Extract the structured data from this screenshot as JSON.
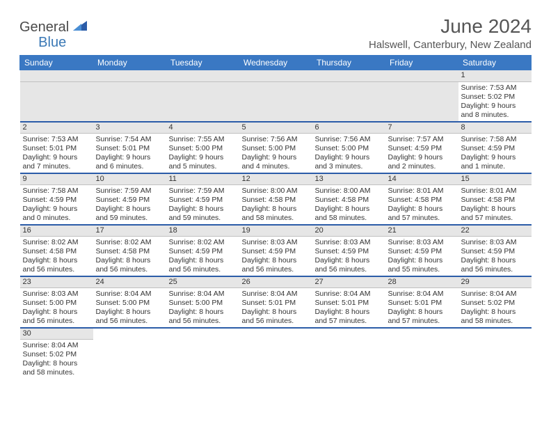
{
  "logo": {
    "part1": "General",
    "part2": "Blue"
  },
  "title": "June 2024",
  "location": "Halswell, Canterbury, New Zealand",
  "colors": {
    "header_bg": "#3a78c3",
    "header_text": "#ffffff",
    "daynum_bg": "#e6e6e6",
    "row_divider": "#2b5ca8",
    "logo_gray": "#4a4a4a",
    "logo_blue": "#3a78b5"
  },
  "weekdays": [
    "Sunday",
    "Monday",
    "Tuesday",
    "Wednesday",
    "Thursday",
    "Friday",
    "Saturday"
  ],
  "weeks": [
    {
      "days": [
        null,
        null,
        null,
        null,
        null,
        null,
        {
          "n": "1",
          "sunrise": "7:53 AM",
          "sunset": "5:02 PM",
          "daylight": "9 hours and 8 minutes."
        }
      ]
    },
    {
      "days": [
        {
          "n": "2",
          "sunrise": "7:53 AM",
          "sunset": "5:01 PM",
          "daylight": "9 hours and 7 minutes."
        },
        {
          "n": "3",
          "sunrise": "7:54 AM",
          "sunset": "5:01 PM",
          "daylight": "9 hours and 6 minutes."
        },
        {
          "n": "4",
          "sunrise": "7:55 AM",
          "sunset": "5:00 PM",
          "daylight": "9 hours and 5 minutes."
        },
        {
          "n": "5",
          "sunrise": "7:56 AM",
          "sunset": "5:00 PM",
          "daylight": "9 hours and 4 minutes."
        },
        {
          "n": "6",
          "sunrise": "7:56 AM",
          "sunset": "5:00 PM",
          "daylight": "9 hours and 3 minutes."
        },
        {
          "n": "7",
          "sunrise": "7:57 AM",
          "sunset": "4:59 PM",
          "daylight": "9 hours and 2 minutes."
        },
        {
          "n": "8",
          "sunrise": "7:58 AM",
          "sunset": "4:59 PM",
          "daylight": "9 hours and 1 minute."
        }
      ]
    },
    {
      "days": [
        {
          "n": "9",
          "sunrise": "7:58 AM",
          "sunset": "4:59 PM",
          "daylight": "9 hours and 0 minutes."
        },
        {
          "n": "10",
          "sunrise": "7:59 AM",
          "sunset": "4:59 PM",
          "daylight": "8 hours and 59 minutes."
        },
        {
          "n": "11",
          "sunrise": "7:59 AM",
          "sunset": "4:59 PM",
          "daylight": "8 hours and 59 minutes."
        },
        {
          "n": "12",
          "sunrise": "8:00 AM",
          "sunset": "4:58 PM",
          "daylight": "8 hours and 58 minutes."
        },
        {
          "n": "13",
          "sunrise": "8:00 AM",
          "sunset": "4:58 PM",
          "daylight": "8 hours and 58 minutes."
        },
        {
          "n": "14",
          "sunrise": "8:01 AM",
          "sunset": "4:58 PM",
          "daylight": "8 hours and 57 minutes."
        },
        {
          "n": "15",
          "sunrise": "8:01 AM",
          "sunset": "4:58 PM",
          "daylight": "8 hours and 57 minutes."
        }
      ]
    },
    {
      "days": [
        {
          "n": "16",
          "sunrise": "8:02 AM",
          "sunset": "4:58 PM",
          "daylight": "8 hours and 56 minutes."
        },
        {
          "n": "17",
          "sunrise": "8:02 AM",
          "sunset": "4:58 PM",
          "daylight": "8 hours and 56 minutes."
        },
        {
          "n": "18",
          "sunrise": "8:02 AM",
          "sunset": "4:59 PM",
          "daylight": "8 hours and 56 minutes."
        },
        {
          "n": "19",
          "sunrise": "8:03 AM",
          "sunset": "4:59 PM",
          "daylight": "8 hours and 56 minutes."
        },
        {
          "n": "20",
          "sunrise": "8:03 AM",
          "sunset": "4:59 PM",
          "daylight": "8 hours and 56 minutes."
        },
        {
          "n": "21",
          "sunrise": "8:03 AM",
          "sunset": "4:59 PM",
          "daylight": "8 hours and 55 minutes."
        },
        {
          "n": "22",
          "sunrise": "8:03 AM",
          "sunset": "4:59 PM",
          "daylight": "8 hours and 56 minutes."
        }
      ]
    },
    {
      "days": [
        {
          "n": "23",
          "sunrise": "8:03 AM",
          "sunset": "5:00 PM",
          "daylight": "8 hours and 56 minutes."
        },
        {
          "n": "24",
          "sunrise": "8:04 AM",
          "sunset": "5:00 PM",
          "daylight": "8 hours and 56 minutes."
        },
        {
          "n": "25",
          "sunrise": "8:04 AM",
          "sunset": "5:00 PM",
          "daylight": "8 hours and 56 minutes."
        },
        {
          "n": "26",
          "sunrise": "8:04 AM",
          "sunset": "5:01 PM",
          "daylight": "8 hours and 56 minutes."
        },
        {
          "n": "27",
          "sunrise": "8:04 AM",
          "sunset": "5:01 PM",
          "daylight": "8 hours and 57 minutes."
        },
        {
          "n": "28",
          "sunrise": "8:04 AM",
          "sunset": "5:01 PM",
          "daylight": "8 hours and 57 minutes."
        },
        {
          "n": "29",
          "sunrise": "8:04 AM",
          "sunset": "5:02 PM",
          "daylight": "8 hours and 58 minutes."
        }
      ]
    },
    {
      "days": [
        {
          "n": "30",
          "sunrise": "8:04 AM",
          "sunset": "5:02 PM",
          "daylight": "8 hours and 58 minutes."
        },
        null,
        null,
        null,
        null,
        null,
        null
      ]
    }
  ],
  "labels": {
    "sunrise": "Sunrise:",
    "sunset": "Sunset:",
    "daylight": "Daylight:"
  }
}
